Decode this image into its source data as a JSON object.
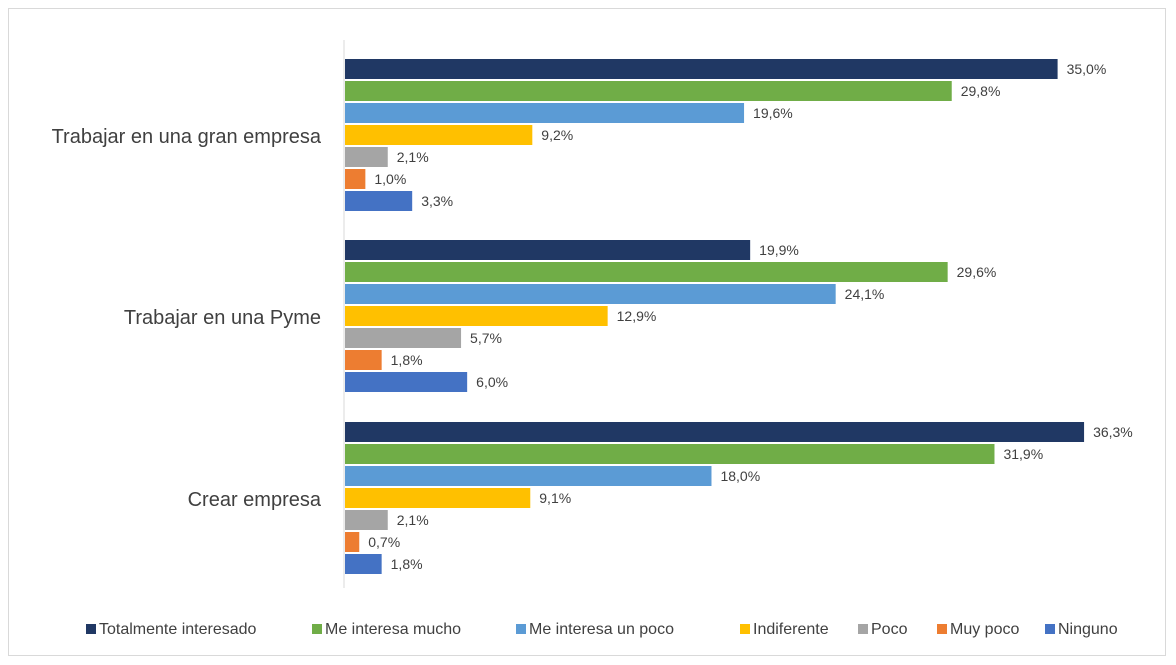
{
  "chart_data": {
    "type": "bar",
    "orientation": "horizontal",
    "categories": [
      "Trabajar en una gran empresa",
      "Trabajar en una Pyme",
      "Crear empresa"
    ],
    "series": [
      {
        "name": "Totalmente interesado",
        "color": "#203864",
        "values": [
          35.0,
          19.9,
          36.3
        ],
        "labels": [
          "35,0%",
          "19,9%",
          "36,3%"
        ]
      },
      {
        "name": "Me interesa mucho",
        "color": "#70AD47",
        "values": [
          29.8,
          29.6,
          31.9
        ],
        "labels": [
          "29,8%",
          "29,6%",
          "31,9%"
        ]
      },
      {
        "name": "Me interesa un poco",
        "color": "#5B9BD5",
        "values": [
          19.6,
          24.1,
          18.0
        ],
        "labels": [
          "19,6%",
          "24,1%",
          "18,0%"
        ]
      },
      {
        "name": "Indiferente",
        "color": "#FFC000",
        "values": [
          9.2,
          12.9,
          9.1
        ],
        "labels": [
          "9,2%",
          "12,9%",
          "9,1%"
        ]
      },
      {
        "name": "Poco",
        "color": "#A5A5A5",
        "values": [
          2.1,
          5.7,
          2.1
        ],
        "labels": [
          "2,1%",
          "5,7%",
          "2,1%"
        ]
      },
      {
        "name": "Muy poco",
        "color": "#ED7D31",
        "values": [
          1.0,
          1.8,
          0.7
        ],
        "labels": [
          "1,0%",
          "1,8%",
          "0,7%"
        ]
      },
      {
        "name": "Ninguno",
        "color": "#4472C4",
        "values": [
          3.3,
          6.0,
          1.8
        ],
        "labels": [
          "3,3%",
          "6,0%",
          "1,8%"
        ]
      }
    ],
    "title": "",
    "xlabel": "",
    "ylabel": "",
    "xlim": [
      0,
      40
    ],
    "grid": false,
    "legend_position": "bottom",
    "axis_color": "#d9d9d9"
  }
}
